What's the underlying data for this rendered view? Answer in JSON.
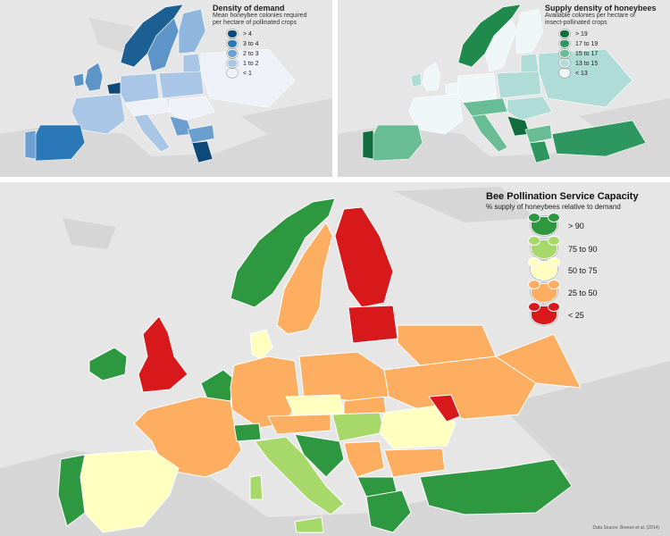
{
  "demand_map": {
    "title": "Density of demand",
    "subtitle_line1": "Mean honeybee colonies required",
    "subtitle_line2": "per hectare of pollinated crops",
    "legend": [
      {
        "label": "> 4",
        "color": "#0d4a7a"
      },
      {
        "label": "3 to 4",
        "color": "#2b78b8"
      },
      {
        "label": "2 to 3",
        "color": "#6a9fd0"
      },
      {
        "label": "1 to 2",
        "color": "#a9c6e6"
      },
      {
        "label": "< 1",
        "color": "#eef1f8"
      }
    ]
  },
  "supply_map": {
    "title": "Supply density of honeybees",
    "subtitle_line1": "Available colonies per hectare of",
    "subtitle_line2": "insect-pollinated crops",
    "legend": [
      {
        "label": "> 19",
        "color": "#0f6e3c"
      },
      {
        "label": "17 to 19",
        "color": "#2e9760"
      },
      {
        "label": "15 to 17",
        "color": "#68bd97"
      },
      {
        "label": "13 to 15",
        "color": "#afdcd6"
      },
      {
        "label": "< 13",
        "color": "#eef6f8"
      }
    ]
  },
  "capacity_map": {
    "title": "Bee Pollination Service Capacity",
    "subtitle": "% supply of honeybees relative to demand",
    "legend": [
      {
        "label": "> 90",
        "color": "#2e9840"
      },
      {
        "label": "75 to 90",
        "color": "#a6d96a"
      },
      {
        "label": "50 to 75",
        "color": "#ffffc0"
      },
      {
        "label": "25 to 50",
        "color": "#fdae61"
      },
      {
        "label": "< 25",
        "color": "#d7191c"
      }
    ],
    "credit": "Data Source: Breeze et al. (2014)"
  }
}
